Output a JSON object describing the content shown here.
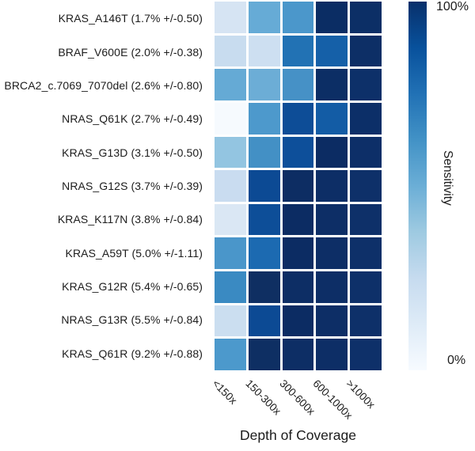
{
  "chart_data": {
    "type": "heatmap",
    "title": "",
    "xlabel": "Depth of Coverage",
    "ylabel": "",
    "legend_position": "right-colorbar",
    "grid": false,
    "colorbar": {
      "label": "Sensitivity",
      "top_label": "100%",
      "bottom_label": "0%",
      "scale": [
        "#f7fbff",
        "#deebf7",
        "#c6dbef",
        "#9ecae1",
        "#6baed6",
        "#4292c6",
        "#2171b5",
        "#08519c",
        "#08306b"
      ]
    },
    "categories": [
      "<150x",
      "150-300x",
      "300-600x",
      "600-1000x",
      ">1000x"
    ],
    "value_unit": "percent sensitivity (estimated from color scale)",
    "rows": [
      {
        "label": "KRAS_A146T (1.7% +/-0.50)",
        "values": [
          18,
          46,
          54,
          100,
          100
        ],
        "colors": [
          "#d6e4f3",
          "#66abd6",
          "#4b97cb",
          "#0b2d64",
          "#0c2f66"
        ]
      },
      {
        "label": "BRAF_V600E (2.0% +/-0.38)",
        "values": [
          22,
          21,
          70,
          76,
          100
        ],
        "colors": [
          "#c8dcef",
          "#cddff1",
          "#2272b4",
          "#1560a8",
          "#0d2f66"
        ]
      },
      {
        "label": "BRCA2_c.7069_7070del (2.6% +/-0.80)",
        "values": [
          47,
          45,
          56,
          100,
          100
        ],
        "colors": [
          "#65aad5",
          "#6cadd6",
          "#4691c6",
          "#0c2e65",
          "#0d3069"
        ]
      },
      {
        "label": "NRAS_Q61K (2.7% +/-0.49)",
        "values": [
          2,
          53,
          82,
          78,
          100
        ],
        "colors": [
          "#f6fafe",
          "#4d99cc",
          "#0d4d97",
          "#135ca5",
          "#0c2f68"
        ]
      },
      {
        "label": "KRAS_G13D (3.1% +/-0.50)",
        "values": [
          36,
          57,
          82,
          100,
          100
        ],
        "colors": [
          "#93c5e1",
          "#4390c5",
          "#0d4f9a",
          "#0c2c63",
          "#0d2f68"
        ]
      },
      {
        "label": "NRAS_G12S (3.7% +/-0.39)",
        "values": [
          21,
          84,
          100,
          100,
          100
        ],
        "colors": [
          "#c9dcf0",
          "#0c4a94",
          "#0d2d63",
          "#0d2e66",
          "#0e3069"
        ]
      },
      {
        "label": "KRAS_K117N (3.8% +/-0.84)",
        "values": [
          14,
          82,
          100,
          100,
          100
        ],
        "colors": [
          "#dae7f4",
          "#0d4e98",
          "#0c2c63",
          "#0d2e66",
          "#0e3069"
        ]
      },
      {
        "label": "KRAS_A59T (5.0% +/-1.11)",
        "values": [
          54,
          72,
          100,
          100,
          100
        ],
        "colors": [
          "#4a96ca",
          "#1c6ab1",
          "#0c2c63",
          "#0d2e66",
          "#0e3069"
        ]
      },
      {
        "label": "KRAS_G12R (5.4% +/-0.65)",
        "values": [
          60,
          100,
          100,
          100,
          100
        ],
        "colors": [
          "#3a8ac2",
          "#0f2f62",
          "#0d2e65",
          "#0d2e66",
          "#0e3069"
        ]
      },
      {
        "label": "NRAS_G13R (5.5% +/-0.84)",
        "values": [
          20,
          84,
          100,
          100,
          100
        ],
        "colors": [
          "#cbdef0",
          "#0c4a94",
          "#0c2c63",
          "#0d2e66",
          "#0e3069"
        ]
      },
      {
        "label": "KRAS_Q61R (9.2% +/-0.88)",
        "values": [
          53,
          100,
          100,
          100,
          100
        ],
        "colors": [
          "#4c99cc",
          "#0e2f63",
          "#0d2e65",
          "#0d2e66",
          "#0e3069"
        ]
      }
    ]
  }
}
